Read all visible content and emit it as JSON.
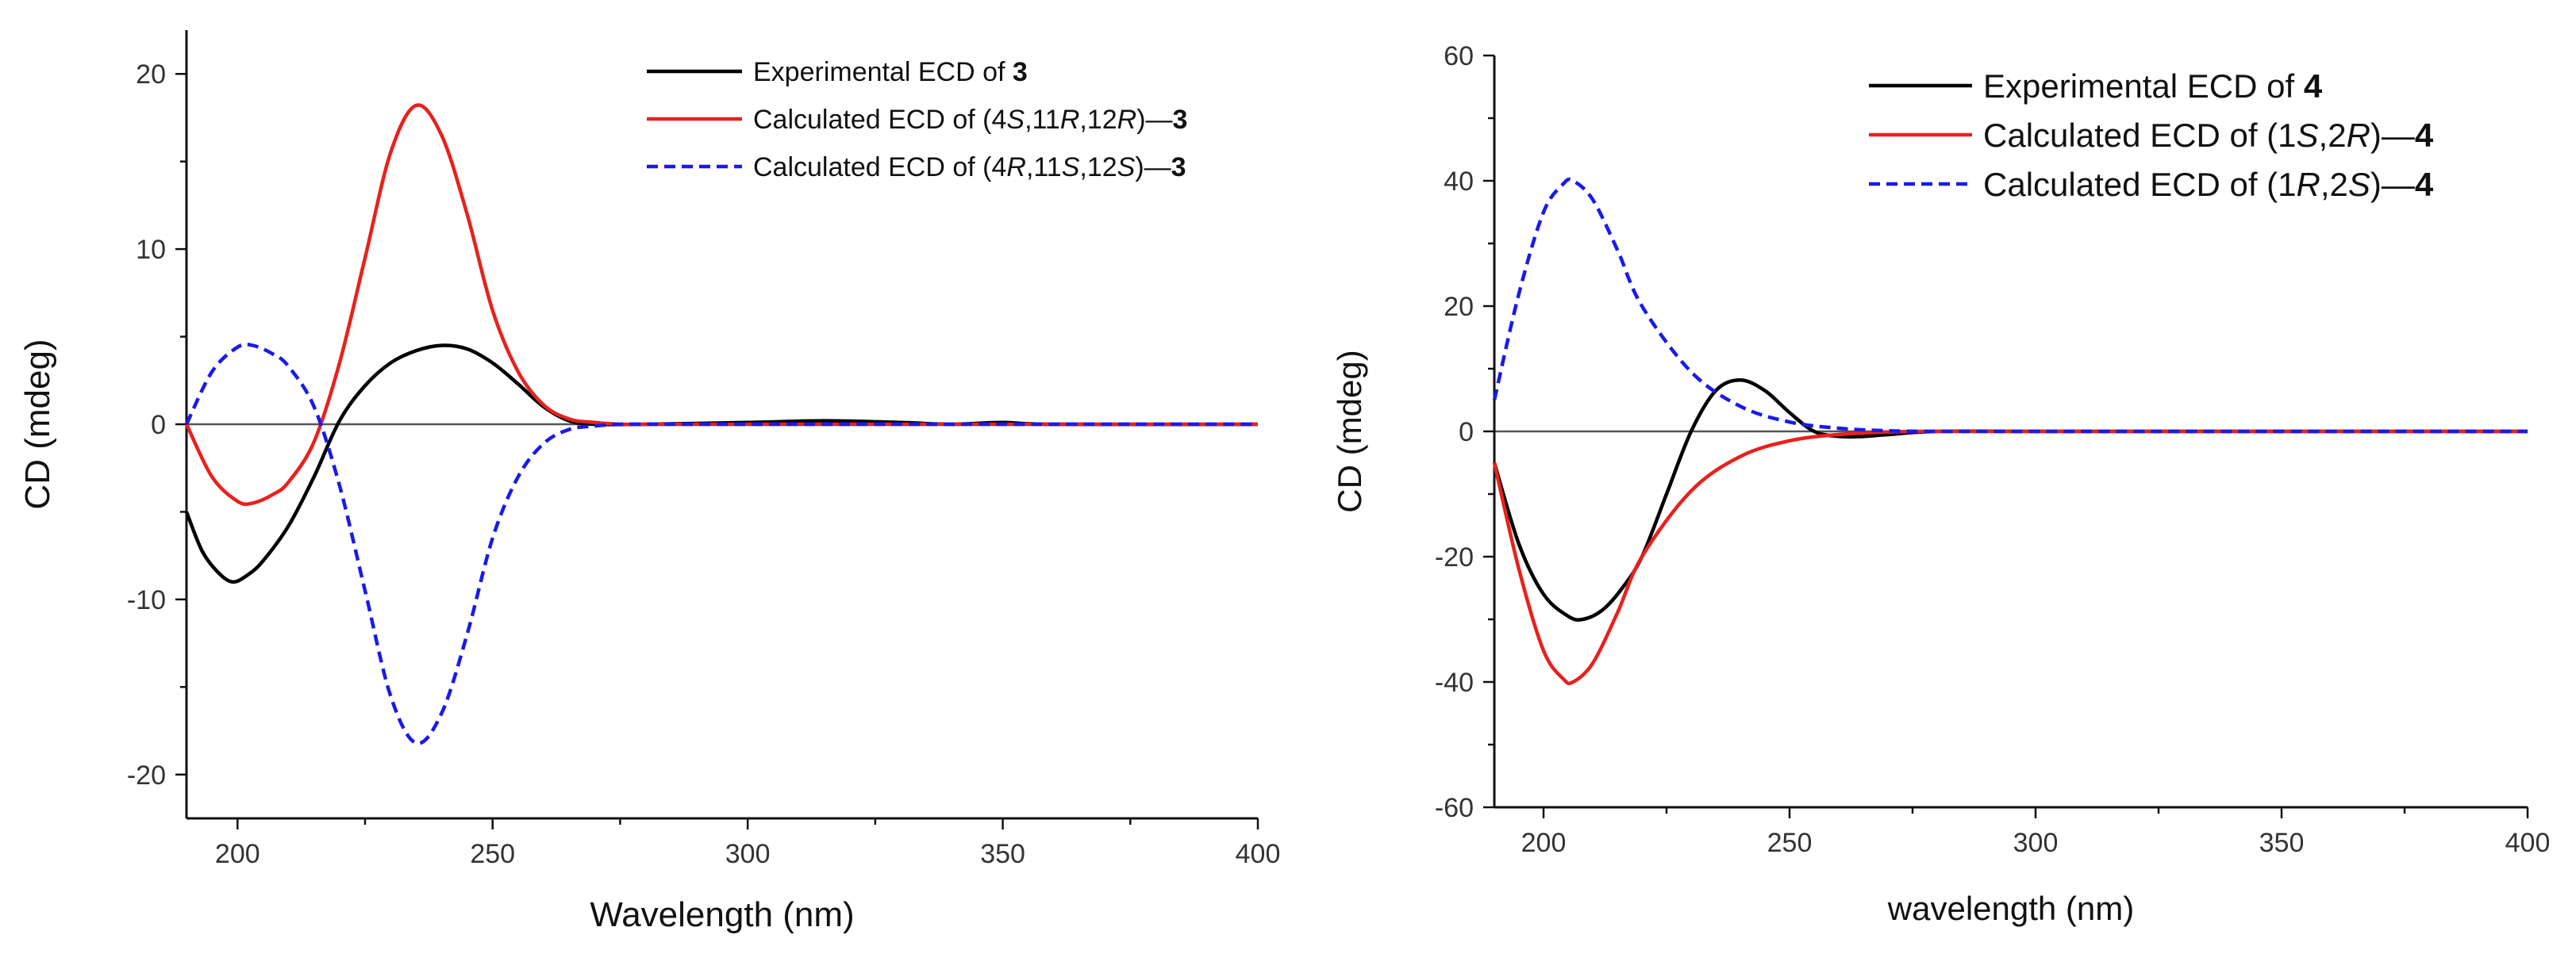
{
  "chart_data": [
    {
      "type": "line",
      "xlabel": "Wavelength (nm)",
      "ylabel": "CD (mdeg)",
      "xlim": [
        190,
        400
      ],
      "ylim": [
        -22.5,
        22.5
      ],
      "xticks": [
        200,
        250,
        300,
        350,
        400
      ],
      "yticks": [
        -20,
        -10,
        0,
        10,
        20
      ],
      "grid": false,
      "legend_position": "top-right",
      "series": [
        {
          "name": "Experimental ECD of 3",
          "legend": [
            {
              "t": "Experimental ECD of "
            },
            {
              "t": "3",
              "w": "bold"
            }
          ],
          "color": "#000000",
          "dash": "solid",
          "x": [
            190,
            193,
            196,
            199,
            202,
            205,
            210,
            215,
            220,
            225,
            230,
            235,
            240,
            245,
            250,
            255,
            260,
            265,
            270,
            280,
            300,
            315,
            330,
            340,
            350,
            360,
            400
          ],
          "y": [
            -5,
            -7.2,
            -8.4,
            -9.0,
            -8.6,
            -7.8,
            -5.8,
            -3.0,
            0.2,
            2.2,
            3.5,
            4.2,
            4.5,
            4.3,
            3.5,
            2.3,
            1.0,
            0.2,
            0.0,
            0.0,
            0.1,
            0.2,
            0.1,
            0.0,
            0.1,
            0.0,
            0.0
          ]
        },
        {
          "name": "Calculated ECD of (4S,11R,12R)-3",
          "legend": [
            {
              "t": "Calculated ECD of (4"
            },
            {
              "t": "S",
              "s": "italic"
            },
            {
              "t": ",11"
            },
            {
              "t": "R",
              "s": "italic"
            },
            {
              "t": ",12"
            },
            {
              "t": "R",
              "s": "italic"
            },
            {
              "t": ")—"
            },
            {
              "t": "3",
              "w": "bold"
            }
          ],
          "color": "#e8211d",
          "dash": "solid",
          "x": [
            190,
            195,
            200,
            203,
            207,
            210,
            215,
            220,
            225,
            230,
            235,
            240,
            245,
            250,
            255,
            260,
            265,
            270,
            275,
            280,
            300,
            400
          ],
          "y": [
            0,
            -3.0,
            -4.4,
            -4.5,
            -4.0,
            -3.3,
            -1.0,
            3.5,
            9.5,
            15.5,
            18.2,
            16.5,
            12.0,
            6.5,
            3.0,
            1.1,
            0.3,
            0.1,
            0.0,
            0.0,
            0.0,
            0.0
          ]
        },
        {
          "name": "Calculated ECD of (4R,11S,12S)-3",
          "legend": [
            {
              "t": "Calculated ECD of (4"
            },
            {
              "t": "R",
              "s": "italic"
            },
            {
              "t": ",11"
            },
            {
              "t": "S",
              "s": "italic"
            },
            {
              "t": ",12"
            },
            {
              "t": "S",
              "s": "italic"
            },
            {
              "t": ")—"
            },
            {
              "t": "3",
              "w": "bold"
            }
          ],
          "color": "#1a1aeb",
          "dash": "dashed",
          "x": [
            190,
            195,
            200,
            203,
            207,
            210,
            215,
            220,
            225,
            230,
            235,
            240,
            245,
            250,
            255,
            260,
            265,
            270,
            275,
            280,
            300,
            400
          ],
          "y": [
            0,
            3.0,
            4.4,
            4.5,
            4.0,
            3.3,
            1.0,
            -3.5,
            -9.5,
            -15.5,
            -18.2,
            -16.5,
            -12.0,
            -6.5,
            -3.0,
            -1.1,
            -0.3,
            -0.1,
            0.0,
            0.0,
            0.0,
            0.0
          ]
        }
      ]
    },
    {
      "type": "line",
      "xlabel": "wavelength (nm)",
      "ylabel": "CD (mdeg)",
      "xlim": [
        190,
        400
      ],
      "ylim": [
        -60,
        60
      ],
      "xticks": [
        200,
        250,
        300,
        350,
        400
      ],
      "yticks": [
        -60,
        -40,
        -20,
        0,
        20,
        40,
        60
      ],
      "grid": false,
      "legend_position": "top-right",
      "series": [
        {
          "name": "Experimental ECD of 4",
          "legend": [
            {
              "t": "Experimental ECD of "
            },
            {
              "t": "4",
              "w": "bold"
            }
          ],
          "color": "#000000",
          "dash": "solid",
          "x": [
            190,
            195,
            200,
            205,
            208,
            212,
            216,
            220,
            225,
            230,
            235,
            240,
            245,
            250,
            255,
            260,
            265,
            270,
            280,
            300,
            350,
            400
          ],
          "y": [
            -5,
            -18,
            -26,
            -29.5,
            -30,
            -28.5,
            -25,
            -20,
            -10,
            0,
            6.5,
            8.2,
            6.5,
            3.0,
            0.0,
            -0.8,
            -0.8,
            -0.5,
            0.0,
            0.0,
            0.0,
            0.0
          ]
        },
        {
          "name": "Calculated ECD of (1S,2R)-4",
          "legend": [
            {
              "t": "Calculated ECD of (1"
            },
            {
              "t": "S",
              "s": "italic"
            },
            {
              "t": ",2"
            },
            {
              "t": "R",
              "s": "italic"
            },
            {
              "t": ")—"
            },
            {
              "t": "4",
              "w": "bold"
            }
          ],
          "color": "#e8211d",
          "dash": "solid",
          "x": [
            190,
            195,
            200,
            204,
            206,
            210,
            215,
            220,
            230,
            240,
            250,
            260,
            270,
            280,
            300,
            400
          ],
          "y": [
            -5,
            -22,
            -35,
            -39.5,
            -40,
            -37,
            -29,
            -20,
            -9.5,
            -4,
            -1.5,
            -0.5,
            -0.1,
            0.0,
            0.0,
            0.0
          ]
        },
        {
          "name": "Calculated ECD of (1R,2S)-4",
          "legend": [
            {
              "t": "Calculated ECD of (1"
            },
            {
              "t": "R",
              "s": "italic"
            },
            {
              "t": ",2"
            },
            {
              "t": "S",
              "s": "italic"
            },
            {
              "t": ")—"
            },
            {
              "t": "4",
              "w": "bold"
            }
          ],
          "color": "#1a1aeb",
          "dash": "dashed",
          "x": [
            190,
            195,
            200,
            204,
            206,
            210,
            215,
            220,
            230,
            240,
            250,
            260,
            270,
            280,
            300,
            400
          ],
          "y": [
            5,
            22,
            35,
            39.5,
            40,
            37,
            29,
            20,
            9.5,
            4,
            1.5,
            0.5,
            0.1,
            0.0,
            0.0,
            0.0
          ]
        }
      ]
    }
  ]
}
